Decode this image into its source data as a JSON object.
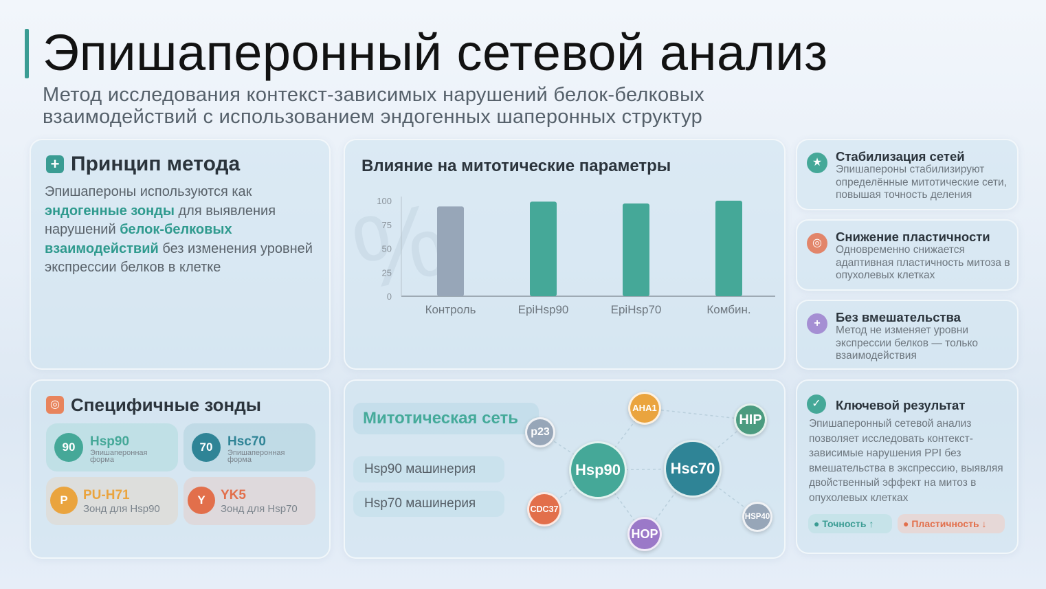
{
  "header": {
    "title": "Эпишаперонный сетевой анализ",
    "subtitle_line1": "Метод исследования контекст-зависимых нарушений белок-белковых",
    "subtitle_line2": "взаимодействий с использованием эндогенных шаперонных структур"
  },
  "principle": {
    "icon": "plus-icon",
    "heading": "Принцип метода",
    "t1": "Эпишапероны используются как ",
    "h1": "эндогенные зонды",
    "t2": " для выявления нарушений ",
    "h2": "белок-белковых взаимодействий",
    "t3": " без изменения уровней экспрессии белков в клетке"
  },
  "chart_data": {
    "type": "bar",
    "title": "Влияние на митотические параметры",
    "categories": [
      "Контроль",
      "EpiHsp90",
      "EpiHsp70",
      "Комбин."
    ],
    "values": [
      94,
      99,
      97,
      100
    ],
    "yticks": [
      "100",
      "75",
      "50",
      "25",
      "0"
    ],
    "ylim": [
      0,
      100
    ],
    "colors": [
      "#97a6b8",
      "#45a898",
      "#45a898",
      "#45a898"
    ],
    "watermark": "%"
  },
  "side": [
    {
      "icon": "star-icon",
      "color": "#45a898",
      "title": "Стабилизация сетей",
      "text": "Эпишапероны стабилизируют определённые митотические сети, повышая точность деления"
    },
    {
      "icon": "target-icon",
      "color": "#e2856a",
      "title": "Снижение пластичности",
      "text": "Одновременно снижается адаптивная пластичность митоза в опухолевых клетках"
    },
    {
      "icon": "plus-icon",
      "color": "#a58fd3",
      "title": "Без вмешательства",
      "text": "Метод не изменяет уровни экспрессии белков — только взаимодействия"
    }
  ],
  "probes": {
    "heading": "Специфичные зонды",
    "items": [
      {
        "badge": "90",
        "name": "Hsp90",
        "desc": "Эпишаперонная форма",
        "color": "#45a898",
        "name_color": "#45a898"
      },
      {
        "badge": "70",
        "name": "Hsc70",
        "desc": "Эпишаперонная форма",
        "color": "#2f8496",
        "name_color": "#2f8496"
      },
      {
        "badge": "P",
        "name": "PU-H71",
        "desc": "Зонд для Hsp90",
        "color": "#eaa43e",
        "name_color": "#eaa43e"
      },
      {
        "badge": "Y",
        "name": "YK5",
        "desc": "Зонд для Hsp70",
        "color": "#e26f4b",
        "name_color": "#e26f4b"
      }
    ]
  },
  "network": {
    "label": "Митотическая сеть",
    "machinery": [
      "Hsp90 машинерия",
      "Hsp70 машинерия"
    ],
    "nodes": {
      "p23": "p23",
      "hsp90": "Hsp90",
      "aha1": "AHA1",
      "hsc70": "Hsc70",
      "hip": "HIP",
      "cdc37": "CDC37",
      "hop": "HOP",
      "hsp40": "HSP40"
    }
  },
  "result": {
    "icon": "check-icon",
    "heading": "Ключевой результат",
    "text": "Эпишаперонный сетевой анализ позволяет исследовать контекст-зависимые нарушения PPI без вмешательства в экспрессию, выявляя двойственный эффект на митоз в опухолевых клетках",
    "tag1": "Точность ↑",
    "tag2": "Пластичность ↓"
  }
}
